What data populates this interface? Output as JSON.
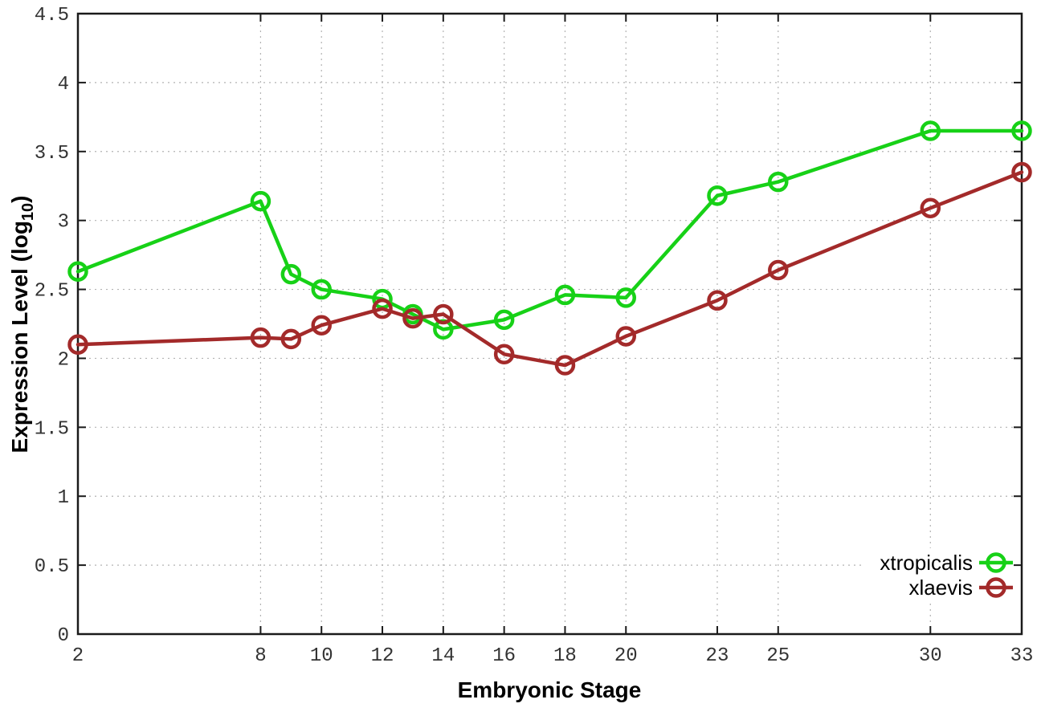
{
  "figure": {
    "background": "#ffffff",
    "border_color": "#1a1a1a",
    "grid_color": "#b3b3b3",
    "tick_text_color": "#333333"
  },
  "labels": {
    "y_prefix": "Expression Level (log",
    "y_sub": "10",
    "y_suffix": ")"
  },
  "chart_data": {
    "type": "line",
    "title": "",
    "xlabel": "Embryonic Stage",
    "ylabel": "Expression Level (log10)",
    "xlim": [
      2,
      33
    ],
    "ylim": [
      0,
      4.5
    ],
    "x_ticks": [
      2,
      8,
      10,
      12,
      14,
      16,
      18,
      20,
      23,
      25,
      30,
      33
    ],
    "y_ticks": [
      0,
      0.5,
      1,
      1.5,
      2,
      2.5,
      3,
      3.5,
      4,
      4.5
    ],
    "grid": true,
    "legend_position": "inside-right-bottom",
    "marker": "open-circle",
    "series": [
      {
        "name": "xtropicalis",
        "color": "#17d117",
        "x": [
          2,
          8,
          9,
          10,
          12,
          13,
          14,
          16,
          18,
          20,
          23,
          25,
          30,
          33
        ],
        "y": [
          2.63,
          3.14,
          2.61,
          2.5,
          2.43,
          2.32,
          2.21,
          2.28,
          2.46,
          2.44,
          3.18,
          3.28,
          3.65,
          3.65
        ]
      },
      {
        "name": "xlaevis",
        "color": "#a32a2a",
        "x": [
          2,
          8,
          9,
          10,
          12,
          13,
          14,
          16,
          18,
          20,
          23,
          25,
          30,
          33
        ],
        "y": [
          2.1,
          2.15,
          2.14,
          2.24,
          2.36,
          2.29,
          2.32,
          2.03,
          1.95,
          2.16,
          2.42,
          2.64,
          3.09,
          3.35
        ]
      }
    ]
  }
}
